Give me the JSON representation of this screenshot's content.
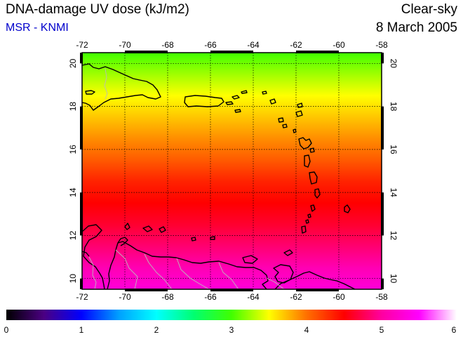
{
  "header": {
    "title": "DNA-damage UV dose (kJ/m2)",
    "source": "MSR - KNMI",
    "condition": "Clear-sky",
    "date": "8 March 2005"
  },
  "colors": {
    "source_text": "#0000cc",
    "coastline": "#000000",
    "borders": "#bbbbbb",
    "gridlines": "#000000"
  },
  "map": {
    "lon_range": [
      -72,
      -58
    ],
    "lat_range": [
      9.5,
      20.5
    ],
    "lon_ticks": [
      "-72",
      "-70",
      "-68",
      "-66",
      "-64",
      "-62",
      "-60",
      "-58"
    ],
    "lat_ticks": [
      "10",
      "12",
      "14",
      "16",
      "18",
      "20"
    ],
    "gridlines": "dotted",
    "layers": [
      "coastlines",
      "country-borders"
    ]
  },
  "colorbar": {
    "ticks": [
      "0",
      "1",
      "2",
      "3",
      "4",
      "5",
      "6"
    ],
    "range": [
      0,
      6
    ],
    "stops": [
      {
        "value": 0.0,
        "color": "#000000"
      },
      {
        "value": 0.5,
        "color": "#4b0082"
      },
      {
        "value": 1.0,
        "color": "#0000ff"
      },
      {
        "value": 1.5,
        "color": "#00a0ff"
      },
      {
        "value": 2.0,
        "color": "#00ffff"
      },
      {
        "value": 2.5,
        "color": "#00ff70"
      },
      {
        "value": 3.0,
        "color": "#40ff00"
      },
      {
        "value": 3.5,
        "color": "#ffff00"
      },
      {
        "value": 4.0,
        "color": "#ff7000"
      },
      {
        "value": 4.5,
        "color": "#ff0000"
      },
      {
        "value": 5.0,
        "color": "#ff00a0"
      },
      {
        "value": 5.5,
        "color": "#ff00ff"
      },
      {
        "value": 6.0,
        "color": "#ffffff"
      }
    ]
  },
  "dose_field": {
    "latitudes": [
      20.5,
      19.5,
      18.5,
      17.5,
      16.5,
      15.5,
      14.5,
      13.5,
      12.5,
      11.5,
      10.5,
      9.5
    ],
    "values": [
      3.0,
      3.25,
      3.5,
      3.7,
      3.9,
      4.1,
      4.35,
      4.5,
      4.65,
      4.85,
      5.1,
      5.3
    ]
  }
}
